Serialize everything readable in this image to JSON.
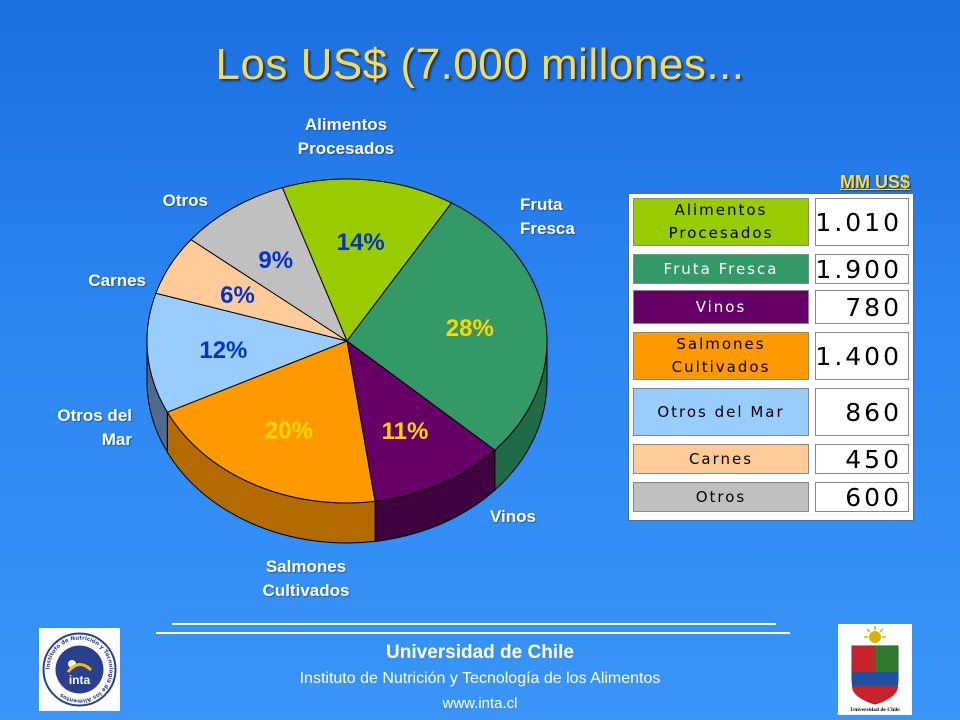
{
  "title": "Los US$ (7.000 millones...",
  "chart_data": {
    "type": "pie",
    "title": "",
    "categories": [
      "Alimentos Procesados",
      "Fruta Fresca",
      "Vinos",
      "Salmones Cultivados",
      "Otros del Mar",
      "Carnes",
      "Otros"
    ],
    "values": [
      14,
      28,
      11,
      20,
      12,
      6,
      9
    ],
    "value_labels": [
      "14%",
      "28%",
      "11%",
      "20%",
      "12%",
      "6%",
      "9%"
    ],
    "outer_labels": [
      [
        "Alimentos",
        "Procesados"
      ],
      [
        "Fruta",
        "Fresca"
      ],
      [
        "Vinos"
      ],
      [
        "Salmones",
        "Cultivados"
      ],
      [
        "Otros del",
        "Mar"
      ],
      [
        "Carnes"
      ],
      [
        "Otros"
      ]
    ],
    "colors": [
      "#99cc00",
      "#339966",
      "#660066",
      "#ff9900",
      "#99ccff",
      "#ffcc99",
      "#c0c0c0"
    ],
    "shade_colors": [
      "#6b8f00",
      "#1f6b47",
      "#3f003f",
      "#b36a00",
      "#4f6a8f",
      "#b38a66",
      "#8a8a8a"
    ],
    "label_colors": [
      "#0033cc",
      "#ffd700",
      "#ffd700",
      "#ffd700",
      "#0033cc",
      "#0033cc",
      "#0033cc"
    ],
    "style": "3d-pie"
  },
  "table": {
    "unit": "MM US$",
    "rows": [
      {
        "category": "Alimentos\nProcesados",
        "value": "1.010",
        "bg": "#99cc00",
        "fg": "#000000"
      },
      {
        "category": "Fruta Fresca",
        "value": "1.900",
        "bg": "#339966",
        "fg": "#ffffff"
      },
      {
        "category": "Vinos",
        "value": "780",
        "bg": "#660066",
        "fg": "#ffffff"
      },
      {
        "category": "Salmones\nCultivados",
        "value": "1.400",
        "bg": "#ff9900",
        "fg": "#000000"
      },
      {
        "category": "Otros del Mar",
        "value": "860",
        "bg": "#99ccff",
        "fg": "#000000"
      },
      {
        "category": "Carnes",
        "value": "450",
        "bg": "#ffcc99",
        "fg": "#000000"
      },
      {
        "category": "Otros",
        "value": "600",
        "bg": "#c0c0c0",
        "fg": "#000000"
      }
    ]
  },
  "footer": {
    "university": "Universidad de Chile",
    "institute": "Instituto de Nutrición y Tecnología de los Alimentos",
    "url": "www.inta.cl",
    "left_logo_text": "inta",
    "left_logo_ring": "Instituto de Nutrición y Tecnología de los Alimentos",
    "right_logo_caption": "Universidad de Chile"
  }
}
